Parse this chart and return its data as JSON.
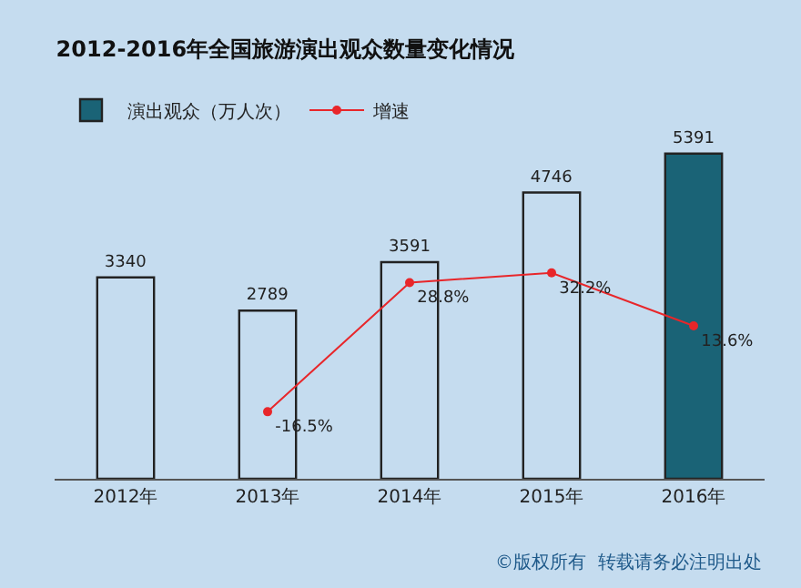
{
  "chart_data": {
    "type": "bar",
    "title": "2012-2016年全国旅游演出观众数量变化情况",
    "categories": [
      "2012年",
      "2013年",
      "2014年",
      "2015年",
      "2016年"
    ],
    "series": [
      {
        "name": "演出观众（万人次）",
        "color": "#1a6376",
        "colors": [
          "#c5dcef",
          "#c5dcef",
          "#c5dcef",
          "#c5dcef",
          "#1a6376"
        ],
        "values": [
          3340,
          2789,
          3591,
          4746,
          5391
        ],
        "value_labels": [
          "3340",
          "2789",
          "3591",
          "4746",
          "5391"
        ]
      },
      {
        "name": "增速",
        "type": "line",
        "axis": "y2",
        "color": "#e8262a",
        "marker": "circle",
        "values": [
          null,
          -16.5,
          28.8,
          32.2,
          13.6
        ],
        "value_labels": [
          null,
          "-16.5%",
          "28.8%",
          "32.2%",
          "13.6%"
        ]
      }
    ],
    "legend": "top left",
    "grid": false,
    "annotations": [
      "©版权所有  转载请务必注明出处"
    ]
  }
}
